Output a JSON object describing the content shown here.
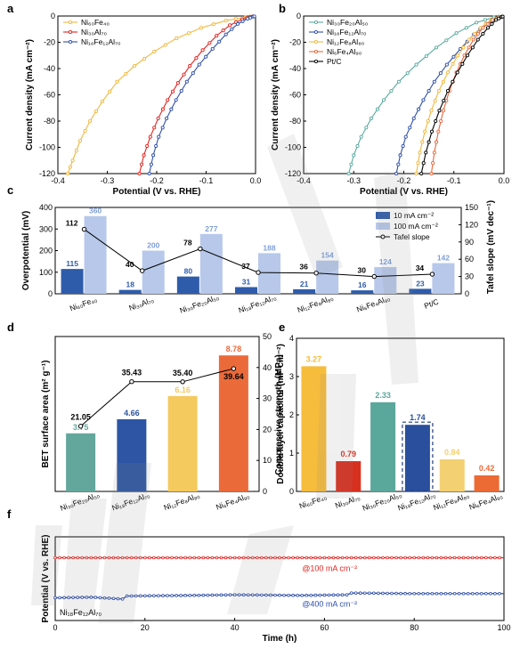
{
  "colors": {
    "yellow": "#f3b73b",
    "red": "#e0231f",
    "blue": "#2f4fa8",
    "teal": "#5aaa9f",
    "orange": "#e9673c",
    "black": "#000000",
    "dark_blue": "#2f5caa",
    "light_blue": "#b7c8ea",
    "e_yellow": "#f6bc3c",
    "e_red": "#d8301f",
    "e_teal": "#5aa79c",
    "e_blue": "#2a4f9c",
    "e_lyellow": "#f3d071",
    "e_orange": "#ec6a34",
    "d_teal": "#63a79c",
    "d_blue": "#2d55a3",
    "d_yellow": "#f4c95e",
    "d_orange": "#ea6a3a"
  },
  "chart_data": [
    {
      "panel": "a",
      "type": "line",
      "xlabel": "Potential (V vs. RHE)",
      "ylabel": "Current density (mA cm⁻²)",
      "xlim": [
        -0.4,
        0.0
      ],
      "ylim": [
        -120,
        0
      ],
      "xticks": [
        "-0.4",
        "-0.3",
        "-0.2",
        "-0.1",
        "0.0"
      ],
      "yticks": [
        "0",
        "-20",
        "-40",
        "-60",
        "-80",
        "-100",
        "-120"
      ],
      "legend_position": "top-left",
      "series": [
        {
          "name": "Ni₆₀Fe₄₀",
          "color_key": "yellow",
          "points": [
            [
              -0.38,
              -120
            ],
            [
              -0.37,
              -110
            ],
            [
              -0.355,
              -95
            ],
            [
              -0.335,
              -80
            ],
            [
              -0.31,
              -65
            ],
            [
              -0.28,
              -50
            ],
            [
              -0.245,
              -38
            ],
            [
              -0.205,
              -27
            ],
            [
              -0.16,
              -17
            ],
            [
              -0.11,
              -9
            ],
            [
              -0.06,
              -3.5
            ],
            [
              -0.02,
              -0.8
            ],
            [
              0.0,
              0
            ]
          ]
        },
        {
          "name": "Ni₃₀Al₇₀",
          "color_key": "red",
          "points": [
            [
              -0.235,
              -120
            ],
            [
              -0.226,
              -106
            ],
            [
              -0.213,
              -92
            ],
            [
              -0.197,
              -78
            ],
            [
              -0.178,
              -64
            ],
            [
              -0.157,
              -51
            ],
            [
              -0.133,
              -38
            ],
            [
              -0.107,
              -26
            ],
            [
              -0.079,
              -15
            ],
            [
              -0.052,
              -7
            ],
            [
              -0.027,
              -2.5
            ],
            [
              -0.01,
              -0.6
            ],
            [
              0.0,
              0
            ]
          ]
        },
        {
          "name": "Ni₁₈Fe₁₂Al₇₀",
          "color_key": "blue",
          "points": [
            [
              -0.215,
              -120
            ],
            [
              -0.207,
              -106
            ],
            [
              -0.196,
              -92
            ],
            [
              -0.18,
              -78
            ],
            [
              -0.161,
              -64
            ],
            [
              -0.139,
              -50
            ],
            [
              -0.114,
              -37
            ],
            [
              -0.087,
              -25
            ],
            [
              -0.06,
              -14
            ],
            [
              -0.036,
              -6
            ],
            [
              -0.016,
              -2
            ],
            [
              -0.005,
              -0.5
            ],
            [
              0.0,
              0
            ]
          ]
        }
      ]
    },
    {
      "panel": "b",
      "type": "line",
      "xlabel": "Potential (V vs. RHE)",
      "ylabel": "Current density (mA cm⁻²)",
      "xlim": [
        -0.4,
        0.0
      ],
      "ylim": [
        -120,
        0
      ],
      "xticks": [
        "-0.4",
        "-0.3",
        "-0.2",
        "-0.1",
        "0.0"
      ],
      "yticks": [
        "0",
        "-20",
        "-40",
        "-60",
        "-80",
        "-100",
        "-120"
      ],
      "legend_position": "top-left",
      "series": [
        {
          "name": "Ni₃₀Fe₂₀Al₅₀",
          "color_key": "teal",
          "points": [
            [
              -0.31,
              -120
            ],
            [
              -0.3,
              -106
            ],
            [
              -0.285,
              -92
            ],
            [
              -0.265,
              -78
            ],
            [
              -0.24,
              -64
            ],
            [
              -0.21,
              -50
            ],
            [
              -0.175,
              -37
            ],
            [
              -0.135,
              -24
            ],
            [
              -0.095,
              -13
            ],
            [
              -0.055,
              -5
            ],
            [
              -0.02,
              -1
            ],
            [
              0.0,
              0
            ]
          ]
        },
        {
          "name": "Ni₁₈Fe₁₂Al₇₀",
          "color_key": "blue",
          "points": [
            [
              -0.215,
              -120
            ],
            [
              -0.207,
              -106
            ],
            [
              -0.196,
              -92
            ],
            [
              -0.18,
              -78
            ],
            [
              -0.161,
              -64
            ],
            [
              -0.139,
              -50
            ],
            [
              -0.114,
              -37
            ],
            [
              -0.087,
              -25
            ],
            [
              -0.06,
              -14
            ],
            [
              -0.036,
              -6
            ],
            [
              -0.016,
              -2
            ],
            [
              0.0,
              0
            ]
          ]
        },
        {
          "name": "Ni₁₂Fe₈Al₈₀",
          "color_key": "yellow",
          "points": [
            [
              -0.175,
              -120
            ],
            [
              -0.168,
              -104
            ],
            [
              -0.158,
              -88
            ],
            [
              -0.145,
              -72
            ],
            [
              -0.13,
              -57
            ],
            [
              -0.112,
              -43
            ],
            [
              -0.092,
              -30
            ],
            [
              -0.07,
              -18
            ],
            [
              -0.047,
              -9
            ],
            [
              -0.025,
              -3
            ],
            [
              -0.008,
              -0.8
            ],
            [
              0.0,
              0
            ]
          ]
        },
        {
          "name": "Ni₆Fe₄Al₉₀",
          "color_key": "orange",
          "points": [
            [
              -0.145,
              -120
            ],
            [
              -0.139,
              -104
            ],
            [
              -0.131,
              -88
            ],
            [
              -0.121,
              -72
            ],
            [
              -0.109,
              -57
            ],
            [
              -0.095,
              -43
            ],
            [
              -0.079,
              -30
            ],
            [
              -0.061,
              -18
            ],
            [
              -0.042,
              -9
            ],
            [
              -0.023,
              -3
            ],
            [
              -0.007,
              -0.7
            ],
            [
              0.0,
              0
            ]
          ]
        },
        {
          "name": "Pt/C",
          "color_key": "black",
          "points": [
            [
              -0.165,
              -120
            ],
            [
              -0.156,
              -104
            ],
            [
              -0.144,
              -88
            ],
            [
              -0.129,
              -72
            ],
            [
              -0.112,
              -57
            ],
            [
              -0.093,
              -43
            ],
            [
              -0.073,
              -30
            ],
            [
              -0.052,
              -18
            ],
            [
              -0.032,
              -9
            ],
            [
              -0.016,
              -3
            ],
            [
              -0.005,
              -0.8
            ],
            [
              0.0,
              0
            ]
          ]
        }
      ]
    },
    {
      "panel": "c",
      "type": "bar",
      "ylabel": "Overpotential (mV)",
      "y2label": "Tafel slope (mV dec⁻¹)",
      "ylim": [
        0,
        400
      ],
      "y2lim": [
        0,
        150
      ],
      "yticks": [
        "0",
        "100",
        "200",
        "300",
        "400"
      ],
      "y2ticks": [
        "0",
        "30",
        "60",
        "90",
        "120",
        "150"
      ],
      "categories": [
        "Ni₆₀Fe₄₀",
        "Ni₃₀Al₇₀",
        "Ni₃₀Fe₂₀Al₅₀",
        "Ni₁₈Fe₁₂Al₇₀",
        "Ni₁₂Fe₈Al₈₀",
        "Ni₆Fe₄Al₉₀",
        "Pt/C"
      ],
      "legend_position": "top-right",
      "series": [
        {
          "name": "10 mA cm⁻²",
          "color_key": "dark_blue",
          "values": [
            115,
            18,
            80,
            31,
            21,
            16,
            23
          ],
          "labels": [
            "115",
            "18",
            "80",
            "31",
            "21",
            "16",
            "23"
          ]
        },
        {
          "name": "100 mA cm⁻²",
          "color_key": "light_blue",
          "values": [
            360,
            200,
            277,
            188,
            154,
            124,
            142
          ],
          "labels": [
            "360",
            "200",
            "277",
            "188",
            "154",
            "124",
            "142"
          ]
        },
        {
          "name": "Tafel slope",
          "color_key": "black",
          "axis": "right",
          "values": [
            112,
            40,
            78,
            37,
            36,
            30,
            34
          ],
          "labels": [
            "112",
            "40",
            "78",
            "37",
            "36",
            "30",
            "34"
          ]
        }
      ]
    },
    {
      "panel": "d",
      "type": "bar",
      "ylabel": "BET surface area (m² g⁻¹)",
      "y2label": "Double layer capacitor (mF cm⁻²)",
      "ylim": [
        0,
        10
      ],
      "y2lim": [
        0,
        50
      ],
      "y2ticks": [
        "0",
        "10",
        "20",
        "30",
        "40",
        "50"
      ],
      "categories": [
        "Ni₃₀Fe₂₀Al₅₀",
        "Ni₁₈Fe₁₂Al₇₀",
        "Ni₁₂Fe₈Al₈₀",
        "Ni₆Fe₄Al₉₀"
      ],
      "series": [
        {
          "name": "BET",
          "values": [
            3.75,
            4.66,
            6.16,
            8.78
          ],
          "labels": [
            "3.75",
            "4.66",
            "6.16",
            "8.78"
          ],
          "color_keys": [
            "d_teal",
            "d_blue",
            "d_yellow",
            "d_orange"
          ]
        },
        {
          "name": "Cdl",
          "axis": "right",
          "values": [
            21.05,
            35.43,
            35.4,
            39.64
          ],
          "labels": [
            "21.05",
            "35.43",
            "35.40",
            "39.64"
          ]
        }
      ]
    },
    {
      "panel": "e",
      "type": "bar",
      "ylabel": "Compressive strength (MPa)",
      "ylim": [
        0,
        4
      ],
      "yticks": [
        "0",
        "1",
        "2",
        "3",
        "4"
      ],
      "categories": [
        "Ni₆₀Fe₄₀",
        "Ni₃₀Al₇₀",
        "Ni₃₀Fe₂₀Al₅₀",
        "Ni₁₈Fe₁₂Al₇₀",
        "Ni₁₂Fe₈Al₈₀",
        "Ni₆Fe₄Al₉₀"
      ],
      "values": [
        3.27,
        0.79,
        2.33,
        1.74,
        0.84,
        0.42
      ],
      "labels": [
        "3.27",
        "0.79",
        "2.33",
        "1.74",
        "0.84",
        "0.42"
      ],
      "color_keys": [
        "e_yellow",
        "e_red",
        "e_teal",
        "e_blue",
        "e_lyellow",
        "e_orange"
      ]
    },
    {
      "panel": "f",
      "type": "line",
      "xlabel": "Time (h)",
      "ylabel": "Potential (V vs. RHE)",
      "xlim": [
        0,
        100
      ],
      "ylim": [
        -1.4,
        0.0
      ],
      "xticks": [
        "0",
        "20",
        "40",
        "60",
        "80",
        "100"
      ],
      "sample_label": "Ni₁₈Fe₁₂Al₇₀",
      "series": [
        {
          "name": "@100 mA cm⁻²",
          "color_key": "red",
          "points": [
            [
              0,
              -0.35
            ],
            [
              20,
              -0.35
            ],
            [
              40,
              -0.35
            ],
            [
              60,
              -0.35
            ],
            [
              80,
              -0.35
            ],
            [
              100,
              -0.35
            ]
          ]
        },
        {
          "name": "@400 mA cm⁻²",
          "color_key": "blue",
          "points": [
            [
              0,
              -1.02
            ],
            [
              8,
              -1.01
            ],
            [
              15,
              -1.04
            ],
            [
              16,
              -0.99
            ],
            [
              30,
              -0.98
            ],
            [
              40,
              -0.97
            ],
            [
              55,
              -0.98
            ],
            [
              65,
              -0.97
            ],
            [
              66,
              -0.94
            ],
            [
              80,
              -0.95
            ],
            [
              100,
              -0.95
            ]
          ]
        }
      ]
    }
  ],
  "panel_letters": [
    "a",
    "b",
    "c",
    "d",
    "e",
    "f"
  ],
  "watermark": "ARTICLE"
}
